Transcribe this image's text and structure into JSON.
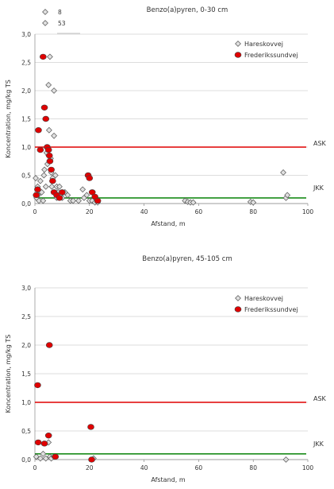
{
  "colors": {
    "ask_line": "#e00000",
    "jkk_line": "#1a8c1a",
    "grid": "#bbbbbb",
    "hareskovvej_fill": "#e0e0e0",
    "frederikssundvej_fill": "#e00000"
  },
  "chart_data": [
    {
      "type": "scatter",
      "title": "Benzo(a)pyren, 0-30 cm",
      "xlabel": "Afstand, m",
      "ylabel": "Koncentration, mg/kg TS",
      "xlim": [
        0,
        100
      ],
      "ylim": [
        0,
        3.0
      ],
      "xticks": [
        "0",
        "20",
        "40",
        "60",
        "80",
        "100"
      ],
      "yticks": [
        "0,0",
        "0,5",
        "1,0",
        "1,5",
        "2,0",
        "2,5",
        "3,0"
      ],
      "grid": true,
      "legend_position": "top-right",
      "top_legend": [
        {
          "label": "8",
          "shape": "diamond"
        },
        {
          "label": "53",
          "shape": "diamond"
        }
      ],
      "reference_lines": [
        {
          "label": "ASK",
          "y": 1.0,
          "color": "#e00000"
        },
        {
          "label": "JKK",
          "y": 0.1,
          "color": "#1a8c1a"
        }
      ],
      "series": [
        {
          "name": "Hareskovvej",
          "marker": "diamond",
          "x": [
            0.3,
            0.6,
            1,
            1.2,
            1.5,
            2,
            2.5,
            3,
            3.3,
            3.5,
            4,
            4.3,
            4.6,
            5,
            5,
            5.2,
            5.5,
            5.8,
            6,
            6.2,
            6.5,
            7,
            7,
            7.5,
            8,
            8,
            8.5,
            9,
            9.5,
            10,
            11,
            12,
            13,
            14,
            16,
            17.5,
            18,
            19,
            20,
            21,
            22,
            23,
            55,
            56,
            57,
            58,
            79,
            80,
            91,
            92,
            92.5
          ],
          "y": [
            0.45,
            0.1,
            0.3,
            0.15,
            0.05,
            0.4,
            0.2,
            0.05,
            0.5,
            0.6,
            0.3,
            0.9,
            0.7,
            0.85,
            2.1,
            1.3,
            2.6,
            0.8,
            0.55,
            0.3,
            0.45,
            1.2,
            2.0,
            0.5,
            0.3,
            0.1,
            0.2,
            0.3,
            0.15,
            0.1,
            0.2,
            0.15,
            0.05,
            0.05,
            0.05,
            0.25,
            0.1,
            0.15,
            0.05,
            0.05,
            0.02,
            0.02,
            0.05,
            0.03,
            0.02,
            0.02,
            0.03,
            0.02,
            0.55,
            0.1,
            0.15
          ]
        },
        {
          "name": "Frederikssundvej",
          "marker": "circle",
          "x": [
            0.5,
            1,
            1.3,
            2,
            3,
            3.5,
            4,
            4.5,
            5,
            5.3,
            5.5,
            6,
            6.5,
            7,
            8,
            9,
            10,
            19.5,
            20,
            21,
            22,
            23
          ],
          "y": [
            0.15,
            0.25,
            1.3,
            0.95,
            2.6,
            1.7,
            1.5,
            1.0,
            0.95,
            0.85,
            0.75,
            0.6,
            0.4,
            0.2,
            0.15,
            0.1,
            0.2,
            0.5,
            0.45,
            0.2,
            0.12,
            0.05
          ]
        }
      ]
    },
    {
      "type": "scatter",
      "title": "Benzo(a)pyren, 45-105 cm",
      "xlabel": "Afstand, m",
      "ylabel": "Koncentration, mg/kg TS",
      "xlim": [
        0,
        100
      ],
      "ylim": [
        0,
        3.0
      ],
      "xticks": [
        "0",
        "20",
        "40",
        "60",
        "80",
        "100"
      ],
      "yticks": [
        "0,0",
        "0,5",
        "1,0",
        "1,5",
        "2,0",
        "2,5",
        "3,0"
      ],
      "grid": true,
      "legend_position": "top-right",
      "reference_lines": [
        {
          "label": "ASK",
          "y": 1.0,
          "color": "#e00000"
        },
        {
          "label": "JKK",
          "y": 0.1,
          "color": "#1a8c1a"
        }
      ],
      "series": [
        {
          "name": "Hareskovvej",
          "marker": "diamond",
          "x": [
            0.5,
            2,
            3,
            4,
            5,
            5.5,
            6,
            7,
            21.5,
            92
          ],
          "y": [
            0.05,
            0.02,
            0.1,
            0.02,
            0.3,
            0.05,
            0.02,
            0.05,
            0.02,
            0.0
          ],
          "name_note": ""
        },
        {
          "name": "Frederikssundvej",
          "marker": "circle",
          "x": [
            1,
            1.2,
            3.5,
            5,
            5.3,
            7.5,
            20.5,
            20.8
          ],
          "y": [
            1.3,
            0.3,
            0.28,
            0.42,
            2.0,
            0.05,
            0.57,
            0.0
          ]
        }
      ]
    }
  ]
}
